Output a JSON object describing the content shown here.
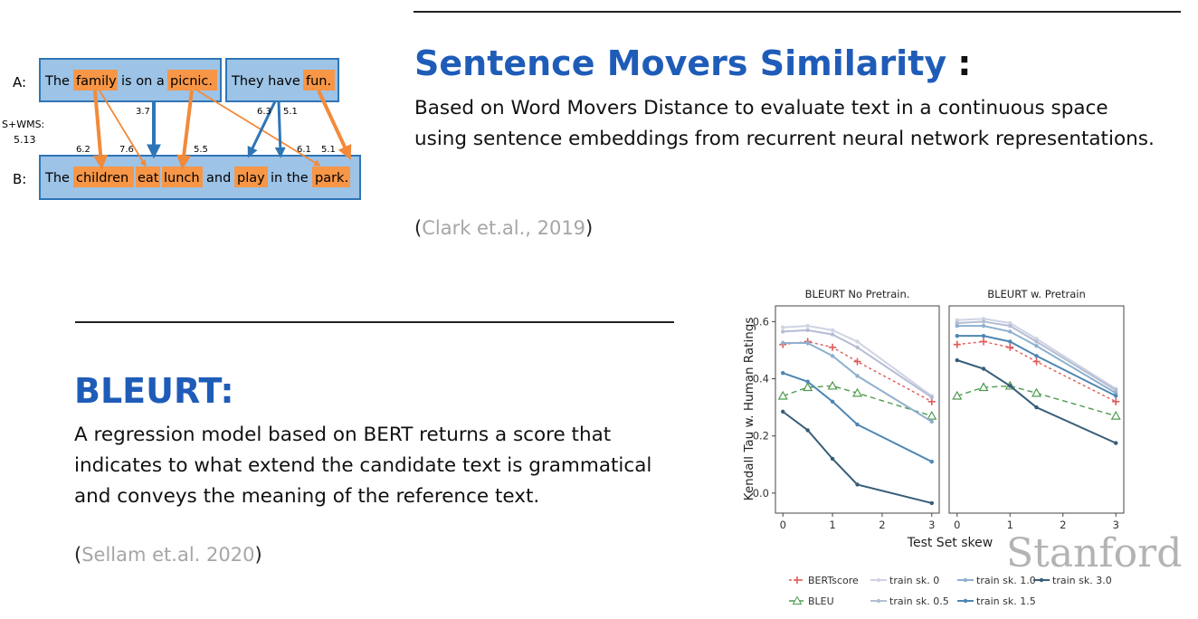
{
  "sms": {
    "title": "Sentence Movers Similarity",
    "colon": ":",
    "description": "Based on Word Movers Distance to evaluate text in a continuous space using sentence embeddings from recurrent neural network representations.",
    "citation_open": "(",
    "citation_name": "Clark et.al., 2019",
    "citation_close": ")"
  },
  "diagram": {
    "label_a": "A:",
    "label_b": "B:",
    "swms_label": "S+WMS:",
    "swms_value": "5.13",
    "sentence_a1": [
      {
        "text": "The",
        "hl": false
      },
      {
        "text": "family",
        "hl": true
      },
      {
        "text": "is on a",
        "hl": false
      },
      {
        "text": "picnic.",
        "hl": true
      }
    ],
    "sentence_a2": [
      {
        "text": "They have",
        "hl": false
      },
      {
        "text": "fun.",
        "hl": true
      }
    ],
    "sentence_b": [
      {
        "text": "The",
        "hl": false
      },
      {
        "text": "children",
        "hl": true
      },
      {
        "text": "eat",
        "hl": true
      },
      {
        "text": "lunch",
        "hl": true
      },
      {
        "text": "and",
        "hl": false
      },
      {
        "text": "play",
        "hl": true
      },
      {
        "text": "in the",
        "hl": false
      },
      {
        "text": "park.",
        "hl": true
      }
    ],
    "weights": [
      "3.7",
      "6.3",
      "5.1",
      "6.2",
      "7.6",
      "5.5",
      "6.1",
      "5.1"
    ]
  },
  "bleurt": {
    "title": "BLEURT:",
    "description": "A regression model based on BERT returns a score that indicates to what extend the candidate text is grammatical and conveys the meaning of the reference text.",
    "citation_open": "(",
    "citation_name": "Sellam et.al. 2020",
    "citation_close": ")"
  },
  "watermark": "Stanford",
  "colors": {
    "title_blue": "#1f5cb8",
    "highlight_orange": "#f79646",
    "box_blue": "#9dc3e6",
    "arrow_blue": "#2e75b6"
  },
  "chart_data": {
    "type": "line",
    "xlabel": "Test Set skew",
    "ylabel": "Kendall Tau w. Human Ratings",
    "x": [
      0,
      0.5,
      1,
      1.5,
      3
    ],
    "xticks": [
      "0",
      "1",
      "2",
      "3"
    ],
    "yticks": [
      "0.0",
      "0.2",
      "0.4",
      "0.6"
    ],
    "xlim": [
      -0.15,
      3.15
    ],
    "ylim": [
      -0.07,
      0.655
    ],
    "legend_position": "bottom",
    "panels": [
      {
        "title": "BLEURT No Pretrain.",
        "series": [
          {
            "name": "BERTscore",
            "values": [
              0.52,
              0.53,
              0.51,
              0.46,
              0.32
            ]
          },
          {
            "name": "BLEU",
            "values": [
              0.34,
              0.37,
              0.375,
              0.35,
              0.27
            ]
          },
          {
            "name": "train sk. 0",
            "values": [
              0.58,
              0.585,
              0.57,
              0.53,
              0.34
            ]
          },
          {
            "name": "train sk. 0.5",
            "values": [
              0.565,
              0.57,
              0.555,
              0.51,
              0.335
            ]
          },
          {
            "name": "train sk. 1.0",
            "values": [
              0.525,
              0.525,
              0.48,
              0.41,
              0.25
            ]
          },
          {
            "name": "train sk. 1.5",
            "values": [
              0.42,
              0.39,
              0.32,
              0.24,
              0.11
            ]
          },
          {
            "name": "train sk. 3.0",
            "values": [
              0.285,
              0.22,
              0.12,
              0.03,
              -0.035
            ]
          }
        ]
      },
      {
        "title": "BLEURT w. Pretrain",
        "series": [
          {
            "name": "BERTscore",
            "values": [
              0.52,
              0.53,
              0.51,
              0.46,
              0.32
            ]
          },
          {
            "name": "BLEU",
            "values": [
              0.34,
              0.37,
              0.375,
              0.35,
              0.27
            ]
          },
          {
            "name": "train sk. 0",
            "values": [
              0.605,
              0.61,
              0.595,
              0.54,
              0.365
            ]
          },
          {
            "name": "train sk. 0.5",
            "values": [
              0.595,
              0.6,
              0.585,
              0.53,
              0.36
            ]
          },
          {
            "name": "train sk. 1.0",
            "values": [
              0.585,
              0.585,
              0.565,
              0.515,
              0.35
            ]
          },
          {
            "name": "train sk. 1.5",
            "values": [
              0.55,
              0.55,
              0.53,
              0.48,
              0.34
            ]
          },
          {
            "name": "train sk. 3.0",
            "values": [
              0.465,
              0.435,
              0.375,
              0.3,
              0.175
            ]
          }
        ]
      }
    ]
  }
}
